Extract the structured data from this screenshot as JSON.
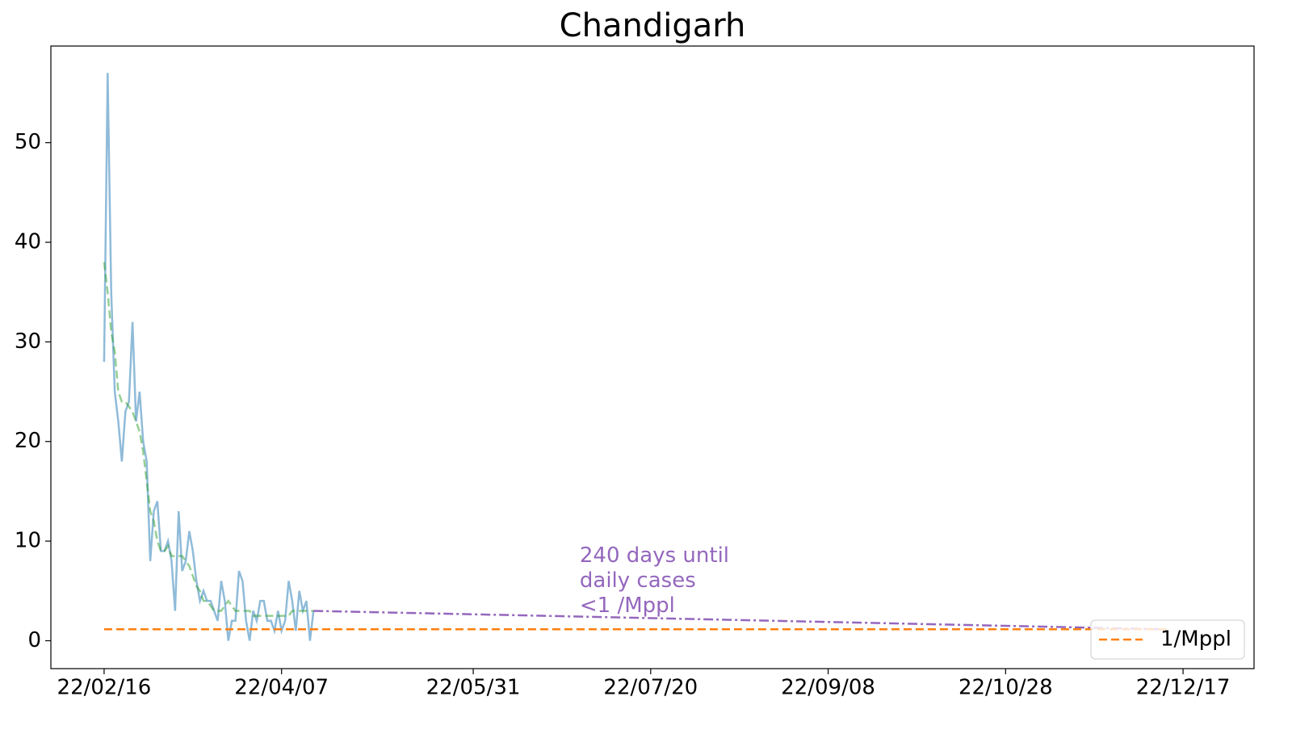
{
  "chart_data": {
    "type": "line",
    "title": "Chandigarh",
    "x": [
      "22/02/16",
      "22/02/17",
      "22/02/18",
      "22/02/19",
      "22/02/20",
      "22/02/21",
      "22/02/22",
      "22/02/23",
      "22/02/24",
      "22/02/25",
      "22/02/26",
      "22/02/27",
      "22/02/28",
      "22/03/01",
      "22/03/02",
      "22/03/03",
      "22/03/04",
      "22/03/05",
      "22/03/06",
      "22/03/07",
      "22/03/08",
      "22/03/09",
      "22/03/10",
      "22/03/11",
      "22/03/12",
      "22/03/13",
      "22/03/14",
      "22/03/15",
      "22/03/16",
      "22/03/17",
      "22/03/18",
      "22/03/19",
      "22/03/20",
      "22/03/21",
      "22/03/22",
      "22/03/23",
      "22/03/24",
      "22/03/25",
      "22/03/26",
      "22/03/27",
      "22/03/28",
      "22/03/29",
      "22/03/30",
      "22/03/31",
      "22/04/01",
      "22/04/02",
      "22/04/03",
      "22/04/04",
      "22/04/05",
      "22/04/06",
      "22/04/07",
      "22/04/08",
      "22/04/09",
      "22/04/10",
      "22/04/11",
      "22/04/12",
      "22/04/13",
      "22/04/14",
      "22/04/15",
      "22/04/16"
    ],
    "series": [
      {
        "color": "#1f77b4",
        "opacity": 0.5,
        "dash": "solid",
        "values": [
          28,
          57,
          35,
          25,
          22,
          18,
          23,
          24,
          32,
          22,
          25,
          20,
          18,
          8,
          13,
          14,
          9,
          9,
          10,
          8,
          3,
          13,
          7,
          8,
          11,
          9,
          6,
          4,
          5,
          4,
          4,
          3,
          2,
          6,
          4,
          0,
          2,
          2,
          7,
          6,
          2,
          0,
          3,
          2,
          4,
          4,
          2,
          2,
          1,
          3,
          1,
          2,
          6,
          4,
          1,
          5,
          3,
          4,
          0,
          3
        ]
      },
      {
        "color": "#2ca02c",
        "opacity": 0.5,
        "dash": "dashed",
        "values": [
          38,
          35,
          31,
          29,
          25,
          24,
          24,
          23.5,
          23,
          22,
          21,
          19,
          16,
          13,
          12,
          10,
          9,
          9,
          9.5,
          8.5,
          8.5,
          8.5,
          8.5,
          8,
          7.5,
          6.5,
          5.5,
          5,
          4,
          4,
          3.5,
          3,
          3,
          3,
          3.5,
          4,
          3.5,
          3,
          3,
          3,
          3,
          3,
          2.5,
          2.5,
          2.5,
          2.5,
          2.5,
          2.5,
          2.5,
          2.5,
          2.5,
          2.5,
          2.5,
          3,
          3,
          3,
          3,
          3,
          3,
          3
        ]
      },
      {
        "color": "#9467bd",
        "opacity": 1,
        "dash": "dashdot",
        "x": [
          "22/04/16",
          "22/12/12"
        ],
        "values": [
          3,
          1.15
        ]
      },
      {
        "name": "1/Mppl",
        "color": "#ff7f0e",
        "opacity": 1,
        "dash": "dashed",
        "x": [
          "22/02/16",
          "22/12/13"
        ],
        "values": [
          1.15,
          1.15
        ]
      }
    ],
    "annotation": {
      "lines": [
        "240 days until",
        "daily cases",
        "<1 /Mppl"
      ],
      "color": "#9467bd",
      "x": "22/06/30",
      "y": 8.5
    },
    "xlim": [
      "22/02/01",
      "23/01/06"
    ],
    "xticks": [
      "22/02/16",
      "22/04/07",
      "22/05/31",
      "22/07/20",
      "22/09/08",
      "22/10/28",
      "22/12/17"
    ],
    "ylim": [
      -2.8,
      59.7
    ],
    "yticks": [
      0,
      10,
      20,
      30,
      40,
      50
    ],
    "grid": false,
    "legend": "lower right"
  }
}
